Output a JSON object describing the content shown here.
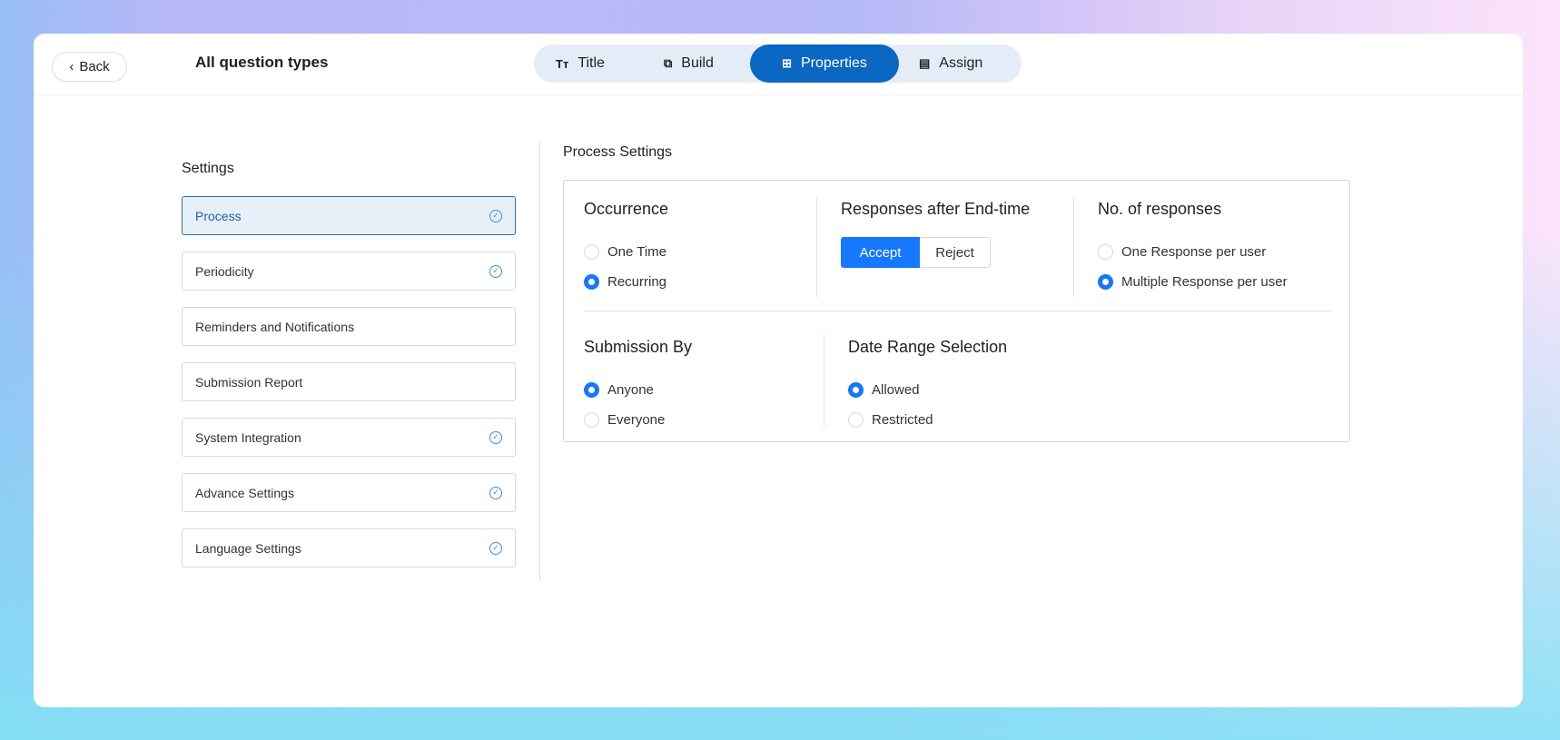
{
  "header": {
    "back_label": "Back",
    "title": "All question types",
    "tabs": [
      {
        "label": "Title",
        "icon": "text-icon"
      },
      {
        "label": "Build",
        "icon": "blocks-icon"
      },
      {
        "label": "Properties",
        "icon": "sliders-icon",
        "active": true
      },
      {
        "label": "Assign",
        "icon": "assign-doc-icon"
      }
    ]
  },
  "sidebar": {
    "heading": "Settings",
    "items": [
      {
        "label": "Process",
        "checked": true,
        "active": true
      },
      {
        "label": "Periodicity",
        "checked": true
      },
      {
        "label": "Reminders and Notifications",
        "checked": false
      },
      {
        "label": "Submission Report",
        "checked": false
      },
      {
        "label": "System Integration",
        "checked": true
      },
      {
        "label": "Advance Settings",
        "checked": true
      },
      {
        "label": "Language Settings",
        "checked": true
      }
    ]
  },
  "main": {
    "title": "Process Settings",
    "occurrence": {
      "heading": "Occurrence",
      "options": [
        "One Time",
        "Recurring"
      ],
      "selected": "Recurring"
    },
    "after_end": {
      "heading": "Responses after End-time",
      "options": [
        "Accept",
        "Reject"
      ],
      "selected": "Accept"
    },
    "responses": {
      "heading": "No. of responses",
      "options": [
        "One Response per user",
        "Multiple Response per user"
      ],
      "selected": "Multiple Response per user"
    },
    "submission": {
      "heading": "Submission By",
      "options": [
        "Anyone",
        "Everyone"
      ],
      "selected": "Anyone"
    },
    "date_range": {
      "heading": "Date Range Selection",
      "options": [
        "Allowed",
        "Restricted"
      ],
      "selected": "Allowed"
    }
  },
  "colors": {
    "primary": "#1677ff",
    "tab_active": "#0a67c2",
    "tab_bg": "#e4edf7"
  }
}
